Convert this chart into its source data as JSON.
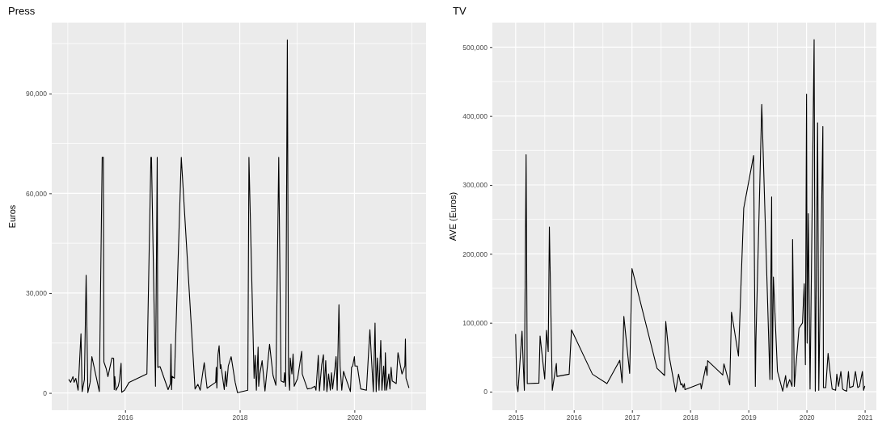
{
  "chart_data": [
    {
      "type": "line",
      "title": "Press",
      "ylabel": "Euros",
      "grid": true,
      "x": [
        2015.02,
        2015.05,
        2015.09,
        2015.11,
        2015.14,
        2015.18,
        2015.23,
        2015.25,
        2015.29,
        2015.32,
        2015.35,
        2015.39,
        2015.42,
        2015.55,
        2015.6,
        2015.62,
        2015.63,
        2015.67,
        2015.7,
        2015.77,
        2015.8,
        2015.81,
        2015.82,
        2015.84,
        2015.88,
        2015.9,
        2015.93,
        2015.94,
        2015.99,
        2016.07,
        2016.38,
        2016.45,
        2016.46,
        2016.53,
        2016.56,
        2016.57,
        2016.61,
        2016.75,
        2016.79,
        2016.8,
        2016.81,
        2016.82,
        2016.86,
        2016.98,
        2017.22,
        2017.27,
        2017.31,
        2017.38,
        2017.43,
        2017.58,
        2017.59,
        2017.6,
        2017.62,
        2017.64,
        2017.66,
        2017.67,
        2017.73,
        2017.75,
        2017.77,
        2017.8,
        2017.85,
        2017.92,
        2017.96,
        2018.14,
        2018.16,
        2018.25,
        2018.27,
        2018.29,
        2018.32,
        2018.33,
        2018.35,
        2018.39,
        2018.44,
        2018.52,
        2018.58,
        2018.63,
        2018.68,
        2018.72,
        2018.77,
        2018.78,
        2018.8,
        2018.83,
        2018.85,
        2018.87,
        2018.88,
        2018.91,
        2018.93,
        2018.95,
        2019.01,
        2019.08,
        2019.09,
        2019.18,
        2019.25,
        2019.31,
        2019.33,
        2019.37,
        2019.39,
        2019.43,
        2019.46,
        2019.47,
        2019.5,
        2019.52,
        2019.55,
        2019.58,
        2019.6,
        2019.62,
        2019.66,
        2019.68,
        2019.7,
        2019.73,
        2019.75,
        2019.78,
        2019.81,
        2019.85,
        2019.93,
        2019.95,
        2019.97,
        2020.0,
        2020.01,
        2020.05,
        2020.11,
        2020.21,
        2020.27,
        2020.33,
        2020.36,
        2020.38,
        2020.4,
        2020.43,
        2020.46,
        2020.48,
        2020.51,
        2020.53,
        2020.54,
        2020.56,
        2020.6,
        2020.62,
        2020.64,
        2020.66,
        2020.73,
        2020.76,
        2020.83,
        2020.88,
        2020.89,
        2020.9,
        2020.95
      ],
      "series": [
        {
          "color": "#000000",
          "values": [
            4000,
            3200,
            4900,
            3200,
            4400,
            800,
            17800,
            400,
            4000,
            35400,
            100,
            3200,
            10900,
            400,
            70800,
            70800,
            9300,
            7300,
            4900,
            10500,
            10400,
            1000,
            4900,
            800,
            2000,
            3600,
            8900,
            200,
            800,
            3200,
            5700,
            70800,
            70800,
            2000,
            70800,
            7700,
            7900,
            1000,
            2800,
            14700,
            1000,
            5000,
            4400,
            70800,
            1200,
            2600,
            800,
            9100,
            1400,
            3200,
            7700,
            1500,
            11500,
            14200,
            7300,
            8500,
            1000,
            6500,
            2000,
            8100,
            10900,
            3200,
            100,
            800,
            70800,
            4400,
            11300,
            800,
            13800,
            2000,
            5700,
            9700,
            600,
            14600,
            5300,
            2300,
            70800,
            3600,
            3200,
            6100,
            2000,
            106100,
            5700,
            800,
            10500,
            5700,
            11700,
            2000,
            4400,
            12500,
            5700,
            1200,
            1400,
            2000,
            800,
            11300,
            600,
            8500,
            11500,
            800,
            9700,
            400,
            5700,
            800,
            6100,
            1200,
            7300,
            10900,
            800,
            26500,
            8100,
            800,
            6500,
            4400,
            400,
            7700,
            8100,
            10900,
            8100,
            8100,
            1200,
            800,
            19000,
            400,
            21000,
            400,
            10500,
            800,
            15800,
            800,
            8100,
            800,
            12100,
            800,
            5700,
            1200,
            7700,
            3600,
            2800,
            12100,
            5700,
            8100,
            16200,
            4400,
            1600
          ]
        }
      ],
      "xlim": [
        2014.72,
        2021.25
      ],
      "ylim": [
        -5200,
        111300
      ],
      "xticks": [
        {
          "value": 2015,
          "label": null
        },
        2016,
        {
          "value": 2017,
          "label": null
        },
        2018,
        {
          "value": 2019,
          "label": null
        },
        2020,
        {
          "value": 2021,
          "label": null
        }
      ],
      "yticks": [
        0,
        {
          "value": 15000,
          "label": null
        },
        {
          "value": 30000,
          "label": "30,000"
        },
        {
          "value": 45000,
          "label": null
        },
        {
          "value": 60000,
          "label": "60,000"
        },
        {
          "value": 75000,
          "label": null
        },
        {
          "value": 90000,
          "label": "90,000"
        },
        {
          "value": 105000,
          "label": null
        }
      ]
    },
    {
      "type": "line",
      "title": "TV",
      "ylabel": "AVE (Euros)",
      "grid": true,
      "x": [
        2015.0,
        2015.02,
        2015.04,
        2015.11,
        2015.13,
        2015.15,
        2015.18,
        2015.2,
        2015.4,
        2015.42,
        2015.5,
        2015.53,
        2015.56,
        2015.58,
        2015.63,
        2015.7,
        2015.71,
        2015.92,
        2015.96,
        2016.32,
        2016.57,
        2016.79,
        2016.83,
        2016.86,
        2016.96,
        2017.0,
        2017.43,
        2017.56,
        2017.58,
        2017.64,
        2017.75,
        2017.8,
        2017.84,
        2017.86,
        2017.88,
        2017.9,
        2017.91,
        2018.18,
        2018.19,
        2018.27,
        2018.29,
        2018.3,
        2018.56,
        2018.58,
        2018.68,
        2018.71,
        2018.83,
        2018.92,
        2019.09,
        2019.12,
        2019.13,
        2019.23,
        2019.37,
        2019.4,
        2019.41,
        2019.43,
        2019.5,
        2019.59,
        2019.64,
        2019.66,
        2019.71,
        2019.75,
        2019.76,
        2019.77,
        2019.79,
        2019.87,
        2019.93,
        2019.96,
        2019.98,
        2020.0,
        2020.01,
        2020.03,
        2020.06,
        2020.13,
        2020.15,
        2020.19,
        2020.21,
        2020.28,
        2020.29,
        2020.33,
        2020.37,
        2020.4,
        2020.44,
        2020.5,
        2020.52,
        2020.55,
        2020.59,
        2020.62,
        2020.65,
        2020.69,
        2020.72,
        2020.74,
        2020.8,
        2020.84,
        2020.88,
        2020.91,
        2020.96,
        2020.98,
        2021.0
      ],
      "series": [
        {
          "color": "#000000",
          "values": [
            83100,
            9800,
            0,
            87800,
            41000,
            2000,
            344000,
            11700,
            12500,
            80700,
            18300,
            88900,
            58100,
            239000,
            2000,
            41000,
            22200,
            25400,
            89700,
            25400,
            11700,
            45600,
            12900,
            109200,
            26500,
            178600,
            33900,
            23500,
            101800,
            50900,
            0,
            25400,
            9800,
            11700,
            5900,
            11700,
            3100,
            11700,
            3900,
            37200,
            23500,
            45000,
            24300,
            40300,
            9800,
            115500,
            51700,
            266200,
            342600,
            7800,
            74400,
            416900,
            17600,
            282700,
            17600,
            166400,
            29400,
            800,
            23500,
            5900,
            17600,
            7800,
            220800,
            152700,
            7800,
            92000,
            99800,
            156600,
            39200,
            431800,
            70500,
            258400,
            3900,
            510900,
            800,
            390300,
            2000,
            384800,
            5900,
            5900,
            55600,
            31300,
            3900,
            2000,
            25400,
            7800,
            29400,
            3900,
            2000,
            800,
            29400,
            5900,
            7800,
            29400,
            5900,
            7800,
            29400,
            2000,
            7800
          ]
        }
      ],
      "xlim": [
        2014.6,
        2021.2
      ],
      "ylim": [
        -26900,
        535500
      ],
      "xticks": [
        2015,
        {
          "value": 2015.5,
          "label": null
        },
        2016,
        {
          "value": 2016.5,
          "label": null
        },
        2017,
        {
          "value": 2017.5,
          "label": null
        },
        2018,
        {
          "value": 2018.5,
          "label": null
        },
        2019,
        {
          "value": 2019.5,
          "label": null
        },
        2020,
        {
          "value": 2020.5,
          "label": null
        },
        2021
      ],
      "yticks": [
        0,
        {
          "value": 50000,
          "label": null
        },
        {
          "value": 100000,
          "label": "100,000"
        },
        {
          "value": 150000,
          "label": null
        },
        {
          "value": 200000,
          "label": "200,000"
        },
        {
          "value": 250000,
          "label": null
        },
        {
          "value": 300000,
          "label": "300,000"
        },
        {
          "value": 350000,
          "label": null
        },
        {
          "value": 400000,
          "label": "400,000"
        },
        {
          "value": 450000,
          "label": null
        },
        {
          "value": 500000,
          "label": "500,000"
        }
      ]
    }
  ]
}
